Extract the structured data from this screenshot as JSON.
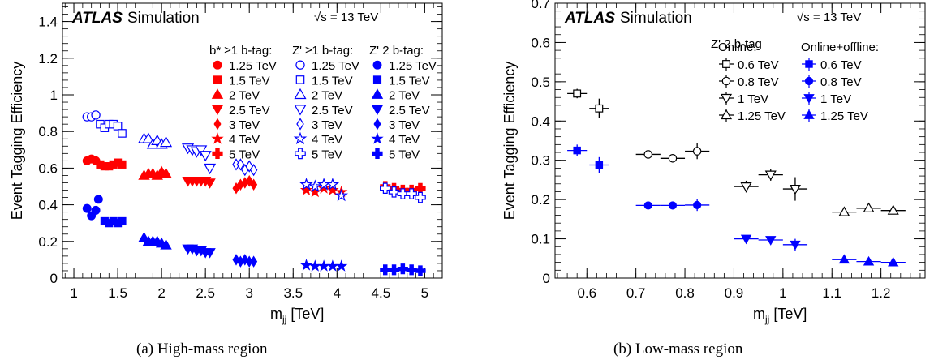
{
  "colors": {
    "red": "#ff0000",
    "blue": "#0000ff",
    "black": "#000000"
  },
  "captions": {
    "a": "(a)  High-mass region",
    "b": "(b)  Low-mass region"
  },
  "chart_data": [
    {
      "type": "scatter",
      "title": "",
      "xlabel": "m_jj [TeV]",
      "ylabel": "Event Tagging Efficiency",
      "xlim": [
        0.87,
        5.2
      ],
      "ylim": [
        0,
        1.5
      ],
      "xticks": [
        1,
        1.5,
        2,
        2.5,
        3,
        3.5,
        4,
        4.5,
        5
      ],
      "xtick_labels": [
        "1",
        "1.5",
        "2",
        "2.5",
        "3",
        "3.5",
        "4",
        "4.5",
        "5"
      ],
      "yticks": [
        0,
        0.2,
        0.4,
        0.6,
        0.8,
        1,
        1.2,
        1.4
      ],
      "ytick_labels": [
        "0",
        "0.2",
        "0.4",
        "0.6",
        "0.8",
        "1",
        "1.2",
        "1.4"
      ],
      "grid": false,
      "legend_position": "top-right",
      "annotations": {
        "atlas": "ATLAS",
        "sim": "Simulation",
        "energy": "√s = 13 TeV"
      },
      "legend_columns": [
        {
          "header": "b* ≥1 b-tag:",
          "entries": [
            {
              "label": "1.25 TeV",
              "marker": "circle",
              "fill": true,
              "color": "red"
            },
            {
              "label": "1.5 TeV",
              "marker": "square",
              "fill": true,
              "color": "red"
            },
            {
              "label": "2 TeV",
              "marker": "triangle-up",
              "fill": true,
              "color": "red"
            },
            {
              "label": "2.5 TeV",
              "marker": "triangle-down",
              "fill": true,
              "color": "red"
            },
            {
              "label": "3 TeV",
              "marker": "diamond",
              "fill": true,
              "color": "red"
            },
            {
              "label": "4 TeV",
              "marker": "star",
              "fill": true,
              "color": "red"
            },
            {
              "label": "5 TeV",
              "marker": "cross",
              "fill": true,
              "color": "red"
            }
          ]
        },
        {
          "header": "Z' ≥1 b-tag:",
          "entries": [
            {
              "label": "1.25 TeV",
              "marker": "circle",
              "fill": false,
              "color": "blue"
            },
            {
              "label": "1.5 TeV",
              "marker": "square",
              "fill": false,
              "color": "blue"
            },
            {
              "label": "2 TeV",
              "marker": "triangle-up",
              "fill": false,
              "color": "blue"
            },
            {
              "label": "2.5 TeV",
              "marker": "triangle-down",
              "fill": false,
              "color": "blue"
            },
            {
              "label": "3 TeV",
              "marker": "diamond",
              "fill": false,
              "color": "blue"
            },
            {
              "label": "4 TeV",
              "marker": "star",
              "fill": false,
              "color": "blue"
            },
            {
              "label": "5 TeV",
              "marker": "cross",
              "fill": false,
              "color": "blue"
            }
          ]
        },
        {
          "header": "Z' 2 b-tag:",
          "entries": [
            {
              "label": "1.25 TeV",
              "marker": "circle",
              "fill": true,
              "color": "blue"
            },
            {
              "label": "1.5 TeV",
              "marker": "square",
              "fill": true,
              "color": "blue"
            },
            {
              "label": "2 TeV",
              "marker": "triangle-up",
              "fill": true,
              "color": "blue"
            },
            {
              "label": "2.5 TeV",
              "marker": "triangle-down",
              "fill": true,
              "color": "blue"
            },
            {
              "label": "3 TeV",
              "marker": "diamond",
              "fill": true,
              "color": "blue"
            },
            {
              "label": "4 TeV",
              "marker": "star",
              "fill": true,
              "color": "blue"
            },
            {
              "label": "5 TeV",
              "marker": "cross",
              "fill": true,
              "color": "blue"
            }
          ]
        }
      ],
      "series": [
        {
          "name": "b* ≥1 b-tag: 1.25 TeV",
          "marker": "circle",
          "fill": true,
          "color": "red",
          "x": [
            1.15,
            1.2,
            1.25
          ],
          "y": [
            0.64,
            0.65,
            0.64
          ]
        },
        {
          "name": "b* ≥1 b-tag: 1.5 TeV",
          "marker": "square",
          "fill": true,
          "color": "red",
          "x": [
            1.3,
            1.35,
            1.4,
            1.45,
            1.5,
            1.55
          ],
          "y": [
            0.62,
            0.61,
            0.61,
            0.62,
            0.63,
            0.62
          ]
        },
        {
          "name": "b* ≥1 b-tag: 2 TeV",
          "marker": "triangle-up",
          "fill": true,
          "color": "red",
          "x": [
            1.8,
            1.85,
            1.9,
            1.95,
            2.0,
            2.05
          ],
          "y": [
            0.56,
            0.57,
            0.57,
            0.56,
            0.58,
            0.57
          ]
        },
        {
          "name": "b* ≥1 b-tag: 2.5 TeV",
          "marker": "triangle-down",
          "fill": true,
          "color": "red",
          "x": [
            2.3,
            2.35,
            2.4,
            2.45,
            2.5,
            2.55
          ],
          "y": [
            0.53,
            0.53,
            0.53,
            0.53,
            0.53,
            0.52
          ]
        },
        {
          "name": "b* ≥1 b-tag: 3 TeV",
          "marker": "diamond",
          "fill": true,
          "color": "red",
          "x": [
            2.85,
            2.9,
            2.95,
            3.0,
            3.05
          ],
          "y": [
            0.49,
            0.51,
            0.52,
            0.53,
            0.51
          ]
        },
        {
          "name": "b* ≥1 b-tag: 4 TeV",
          "marker": "star",
          "fill": true,
          "color": "red",
          "x": [
            3.65,
            3.75,
            3.85,
            3.95,
            4.05
          ],
          "y": [
            0.48,
            0.47,
            0.49,
            0.48,
            0.47
          ]
        },
        {
          "name": "b* ≥1 b-tag: 5 TeV",
          "marker": "cross",
          "fill": true,
          "color": "red",
          "x": [
            4.55,
            4.65,
            4.75,
            4.85,
            4.95
          ],
          "y": [
            0.5,
            0.49,
            0.48,
            0.48,
            0.49
          ]
        },
        {
          "name": "Z' ≥1 b-tag: 1.25 TeV",
          "marker": "circle",
          "fill": false,
          "color": "blue",
          "x": [
            1.15,
            1.2,
            1.25
          ],
          "y": [
            0.88,
            0.88,
            0.89
          ]
        },
        {
          "name": "Z' ≥1 b-tag: 1.5 TeV",
          "marker": "square",
          "fill": false,
          "color": "blue",
          "x": [
            1.3,
            1.35,
            1.4,
            1.45,
            1.5,
            1.55
          ],
          "y": [
            0.84,
            0.82,
            0.84,
            0.84,
            0.83,
            0.79
          ]
        },
        {
          "name": "Z' ≥1 b-tag: 2 TeV",
          "marker": "triangle-up",
          "fill": false,
          "color": "blue",
          "x": [
            1.8,
            1.85,
            1.9,
            1.95,
            2.0,
            2.05
          ],
          "y": [
            0.76,
            0.76,
            0.73,
            0.75,
            0.73,
            0.74
          ]
        },
        {
          "name": "Z' ≥1 b-tag: 2.5 TeV",
          "marker": "triangle-down",
          "fill": false,
          "color": "blue",
          "x": [
            2.3,
            2.35,
            2.4,
            2.45,
            2.5,
            2.55
          ],
          "y": [
            0.71,
            0.7,
            0.69,
            0.7,
            0.67,
            0.6
          ]
        },
        {
          "name": "Z' ≥1 b-tag: 3 TeV",
          "marker": "diamond",
          "fill": false,
          "color": "blue",
          "x": [
            2.85,
            2.9,
            2.95,
            3.0,
            3.05
          ],
          "y": [
            0.62,
            0.62,
            0.59,
            0.61,
            0.59
          ]
        },
        {
          "name": "Z' ≥1 b-tag: 4 TeV",
          "marker": "star",
          "fill": false,
          "color": "blue",
          "x": [
            3.65,
            3.75,
            3.85,
            3.95,
            4.05
          ],
          "y": [
            0.51,
            0.5,
            0.51,
            0.51,
            0.45
          ]
        },
        {
          "name": "Z' ≥1 b-tag: 5 TeV",
          "marker": "cross",
          "fill": false,
          "color": "blue",
          "x": [
            4.55,
            4.65,
            4.75,
            4.85,
            4.95
          ],
          "y": [
            0.49,
            0.47,
            0.46,
            0.46,
            0.44
          ]
        },
        {
          "name": "Z' 2 b-tag: 1.25 TeV",
          "marker": "circle",
          "fill": true,
          "color": "blue",
          "x": [
            1.15,
            1.2,
            1.25,
            1.28
          ],
          "y": [
            0.38,
            0.34,
            0.37,
            0.43
          ]
        },
        {
          "name": "Z' 2 b-tag: 1.5 TeV",
          "marker": "square",
          "fill": true,
          "color": "blue",
          "x": [
            1.35,
            1.4,
            1.45,
            1.5,
            1.55
          ],
          "y": [
            0.31,
            0.3,
            0.31,
            0.3,
            0.31
          ]
        },
        {
          "name": "Z' 2 b-tag: 2 TeV",
          "marker": "triangle-up",
          "fill": true,
          "color": "blue",
          "x": [
            1.8,
            1.85,
            1.9,
            1.95,
            2.0,
            2.05
          ],
          "y": [
            0.22,
            0.2,
            0.2,
            0.2,
            0.19,
            0.18
          ]
        },
        {
          "name": "Z' 2 b-tag: 2.5 TeV",
          "marker": "triangle-down",
          "fill": true,
          "color": "blue",
          "x": [
            2.3,
            2.35,
            2.4,
            2.45,
            2.5,
            2.55
          ],
          "y": [
            0.16,
            0.16,
            0.15,
            0.15,
            0.14,
            0.14
          ]
        },
        {
          "name": "Z' 2 b-tag: 3 TeV",
          "marker": "diamond",
          "fill": true,
          "color": "blue",
          "x": [
            2.85,
            2.9,
            2.95,
            3.0,
            3.05
          ],
          "y": [
            0.1,
            0.09,
            0.1,
            0.09,
            0.09
          ]
        },
        {
          "name": "Z' 2 b-tag: 4 TeV",
          "marker": "star",
          "fill": true,
          "color": "blue",
          "x": [
            3.65,
            3.75,
            3.85,
            3.95,
            4.05
          ],
          "y": [
            0.07,
            0.065,
            0.065,
            0.065,
            0.065
          ]
        },
        {
          "name": "Z' 2 b-tag: 5 TeV",
          "marker": "cross",
          "fill": true,
          "color": "blue",
          "x": [
            4.55,
            4.65,
            4.75,
            4.85,
            4.95
          ],
          "y": [
            0.045,
            0.045,
            0.05,
            0.045,
            0.04
          ]
        }
      ]
    },
    {
      "type": "scatter",
      "title": "",
      "xlabel": "m_jj [TeV]",
      "ylabel": "Event Tagging Efficiency",
      "xlim": [
        0.535,
        1.29
      ],
      "ylim": [
        0,
        0.7
      ],
      "xticks": [
        0.6,
        0.7,
        0.8,
        0.9,
        1,
        1.1,
        1.2
      ],
      "xtick_labels": [
        "0.6",
        "0.7",
        "0.8",
        "0.9",
        "1",
        "1.1",
        "1.2"
      ],
      "yticks": [
        0,
        0.1,
        0.2,
        0.3,
        0.4,
        0.5,
        0.6,
        0.7
      ],
      "ytick_labels": [
        "0",
        "0.1",
        "0.2",
        "0.3",
        "0.4",
        "0.5",
        "0.6",
        "0.7"
      ],
      "grid": false,
      "legend_position": "top-right",
      "annotations": {
        "atlas": "ATLAS",
        "sim": "Simulation",
        "energy": "√s = 13 TeV",
        "tag": "Z' 2 b-tag"
      },
      "legend_columns": [
        {
          "header": "Online:",
          "entries": [
            {
              "label": "0.6 TeV",
              "marker": "square",
              "fill": false,
              "color": "black"
            },
            {
              "label": "0.8 TeV",
              "marker": "circle",
              "fill": false,
              "color": "black"
            },
            {
              "label": "1 TeV",
              "marker": "triangle-down",
              "fill": false,
              "color": "black"
            },
            {
              "label": "1.25 TeV",
              "marker": "triangle-up",
              "fill": false,
              "color": "black"
            }
          ]
        },
        {
          "header": "Online+offline:",
          "entries": [
            {
              "label": "0.6 TeV",
              "marker": "square",
              "fill": true,
              "color": "blue"
            },
            {
              "label": "0.8 TeV",
              "marker": "circle",
              "fill": true,
              "color": "blue"
            },
            {
              "label": "1 TeV",
              "marker": "triangle-down",
              "fill": true,
              "color": "blue"
            },
            {
              "label": "1.25 TeV",
              "marker": "triangle-up",
              "fill": true,
              "color": "blue"
            }
          ]
        }
      ],
      "series": [
        {
          "name": "Online: 0.6 TeV",
          "marker": "square",
          "fill": false,
          "color": "black",
          "x": [
            0.58,
            0.625
          ],
          "y": [
            0.47,
            0.432
          ],
          "xerr": 0.02,
          "yerr": [
            0.012,
            0.025
          ]
        },
        {
          "name": "Online: 0.8 TeV",
          "marker": "circle",
          "fill": false,
          "color": "black",
          "x": [
            0.725,
            0.775,
            0.825
          ],
          "y": [
            0.315,
            0.305,
            0.323
          ],
          "xerr": 0.025,
          "yerr": [
            0.01,
            0.01,
            0.02
          ]
        },
        {
          "name": "Online: 1 TeV",
          "marker": "triangle-down",
          "fill": false,
          "color": "black",
          "x": [
            0.925,
            0.975,
            1.025
          ],
          "y": [
            0.233,
            0.263,
            0.227
          ],
          "xerr": 0.025,
          "yerr": [
            0.015,
            0.015,
            0.03
          ]
        },
        {
          "name": "Online: 1.25 TeV",
          "marker": "triangle-up",
          "fill": false,
          "color": "black",
          "x": [
            1.125,
            1.175,
            1.225
          ],
          "y": [
            0.168,
            0.178,
            0.172
          ],
          "xerr": 0.025,
          "yerr": [
            0.008,
            0.008,
            0.008
          ]
        },
        {
          "name": "Online+offline: 0.6 TeV",
          "marker": "square",
          "fill": true,
          "color": "blue",
          "x": [
            0.58,
            0.625
          ],
          "y": [
            0.325,
            0.288
          ],
          "xerr": 0.02,
          "yerr": [
            0.015,
            0.02
          ]
        },
        {
          "name": "Online+offline: 0.8 TeV",
          "marker": "circle",
          "fill": true,
          "color": "blue",
          "x": [
            0.725,
            0.775,
            0.825
          ],
          "y": [
            0.185,
            0.185,
            0.186
          ],
          "xerr": 0.025,
          "yerr": [
            0.008,
            0.006,
            0.015
          ]
        },
        {
          "name": "Online+offline: 1 TeV",
          "marker": "triangle-down",
          "fill": true,
          "color": "blue",
          "x": [
            0.925,
            0.975,
            1.025
          ],
          "y": [
            0.1,
            0.097,
            0.085
          ],
          "xerr": 0.025,
          "yerr": [
            0.005,
            0.005,
            0.015
          ]
        },
        {
          "name": "Online+offline: 1.25 TeV",
          "marker": "triangle-up",
          "fill": true,
          "color": "blue",
          "x": [
            1.125,
            1.175,
            1.225
          ],
          "y": [
            0.047,
            0.042,
            0.04
          ],
          "xerr": 0.025,
          "yerr": [
            0.003,
            0.003,
            0.003
          ]
        }
      ]
    }
  ]
}
